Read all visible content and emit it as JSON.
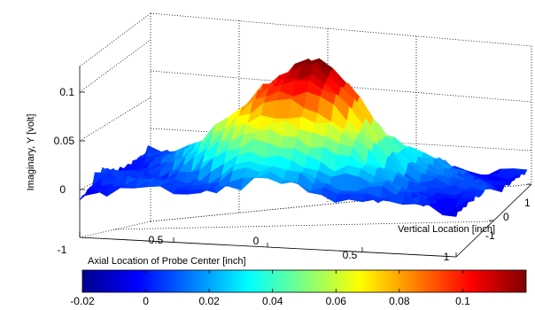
{
  "chart_data": {
    "type": "surface",
    "title": "",
    "zlabel": "Imaginary, Y [volt]",
    "xlabel": "Axial Location of Probe Center [inch]",
    "ylabel": "Vertical Location [inch]",
    "xlim": [
      -1,
      1
    ],
    "ylim": [
      -1,
      1
    ],
    "zlim": [
      -0.02,
      0.13
    ],
    "x_ticks": [
      "-1",
      "-0.5",
      "0",
      "0.5",
      "1"
    ],
    "y_ticks": [
      "-1",
      "0",
      "1"
    ],
    "z_ticks": [
      "0",
      "0.05",
      "0.1"
    ],
    "colormap": "jet",
    "grid": true,
    "peak": {
      "x": 0.0,
      "y": 0.0,
      "z": 0.12
    },
    "baseline_z": 0.0,
    "colorbar": {
      "location": "bottom",
      "range": [
        -0.02,
        0.12
      ],
      "ticks": [
        "-0.02",
        "0",
        "0.02",
        "0.04",
        "0.06",
        "0.08",
        "0.1"
      ]
    },
    "colors": {
      "low": "#00008f",
      "mid": "#7fff7f",
      "high": "#800000"
    }
  }
}
